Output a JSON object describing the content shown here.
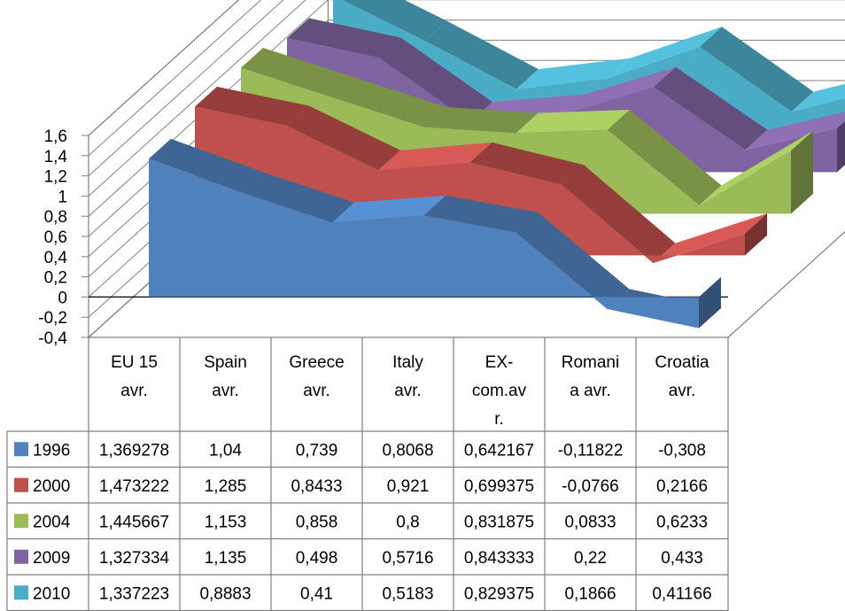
{
  "chart_data": {
    "type": "area",
    "subtype": "3d-area-with-data-table",
    "title": "",
    "xlabel": "",
    "ylabel": "",
    "ylim": [
      -0.4,
      1.6
    ],
    "y_ticks": [
      "1,6",
      "1,4",
      "1,2",
      "1",
      "0,8",
      "0,6",
      "0,4",
      "0,2",
      "0",
      "-0,2",
      "-0,4"
    ],
    "categories": [
      [
        "EU 15",
        "avr."
      ],
      [
        "Spain",
        "avr."
      ],
      [
        "Greece",
        "avr."
      ],
      [
        "Italy",
        "avr."
      ],
      [
        "EX-",
        "com.av",
        "r."
      ],
      [
        "Romani",
        "a avr."
      ],
      [
        "Croatia",
        "avr."
      ]
    ],
    "series": [
      {
        "name": "1996",
        "color": "#4F81BD",
        "values": [
          1.369278,
          1.04,
          0.739,
          0.8068,
          0.642167,
          -0.11822,
          -0.308
        ],
        "labels": [
          "1,369278",
          "1,04",
          "0,739",
          "0,8068",
          "0,642167",
          "-0,11822",
          "-0,308"
        ]
      },
      {
        "name": "2000",
        "color": "#C0504D",
        "values": [
          1.473222,
          1.285,
          0.8433,
          0.921,
          0.699375,
          -0.0766,
          0.2166
        ],
        "labels": [
          "1,473222",
          "1,285",
          "0,8433",
          "0,921",
          "0,699375",
          "-0,0766",
          "0,2166"
        ]
      },
      {
        "name": "2004",
        "color": "#9BBB59",
        "values": [
          1.445667,
          1.153,
          0.858,
          0.8,
          0.831875,
          0.0833,
          0.6233
        ],
        "labels": [
          "1,445667",
          "1,153",
          "0,858",
          "0,8",
          "0,831875",
          "0,0833",
          "0,6233"
        ]
      },
      {
        "name": "2009",
        "color": "#8064A2",
        "values": [
          1.327334,
          1.135,
          0.498,
          0.5716,
          0.843333,
          0.22,
          0.433
        ],
        "labels": [
          "1,327334",
          "1,135",
          "0,498",
          "0,5716",
          "0,843333",
          "0,22",
          "0,433"
        ]
      },
      {
        "name": "2010",
        "color": "#4BACC6",
        "values": [
          1.337223,
          0.8883,
          0.41,
          0.5183,
          0.829375,
          0.1866,
          0.41166
        ],
        "labels": [
          "1,337223",
          "0,8883",
          "0,41",
          "0,5183",
          "0,829375",
          "0,1866",
          "0,41166"
        ]
      }
    ],
    "grid": true,
    "legend": "in data table"
  }
}
